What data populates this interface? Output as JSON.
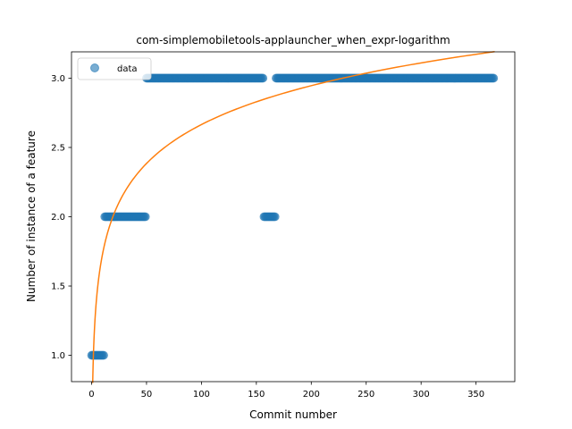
{
  "chart_data": {
    "type": "scatter",
    "title": "com-simplemobiletools-applauncher_when_expr-logarithm",
    "xlabel": "Commit number",
    "ylabel": "Number of instance of a feature",
    "xlim": [
      -18.3,
      385.3
    ],
    "ylim": [
      0.81,
      3.19
    ],
    "xticks": [
      0,
      50,
      100,
      150,
      200,
      250,
      300,
      350
    ],
    "yticks": [
      1.0,
      1.5,
      2.0,
      2.5,
      3.0
    ],
    "ytick_labels": [
      "1.0",
      "1.5",
      "2.0",
      "2.5",
      "3.0"
    ],
    "legend": {
      "placement": "top-left",
      "entries": [
        "data"
      ]
    },
    "grid": false,
    "series": [
      {
        "name": "data",
        "kind": "scatter",
        "color": "#1f77b4",
        "segments": [
          {
            "x_from": 0,
            "x_to": 12,
            "y": 1
          },
          {
            "x_from": 12,
            "x_to": 50,
            "y": 2
          },
          {
            "x_from": 50,
            "x_to": 157,
            "y": 3
          },
          {
            "x_from": 157,
            "x_to": 168,
            "y": 2
          },
          {
            "x_from": 168,
            "x_to": 367,
            "y": 3
          }
        ]
      },
      {
        "kind": "fit_line",
        "color": "#ff7f0e",
        "function": "a + b*ln(x)",
        "a": 0.8,
        "b": 0.405,
        "x_range": [
          1,
          367
        ]
      }
    ]
  }
}
